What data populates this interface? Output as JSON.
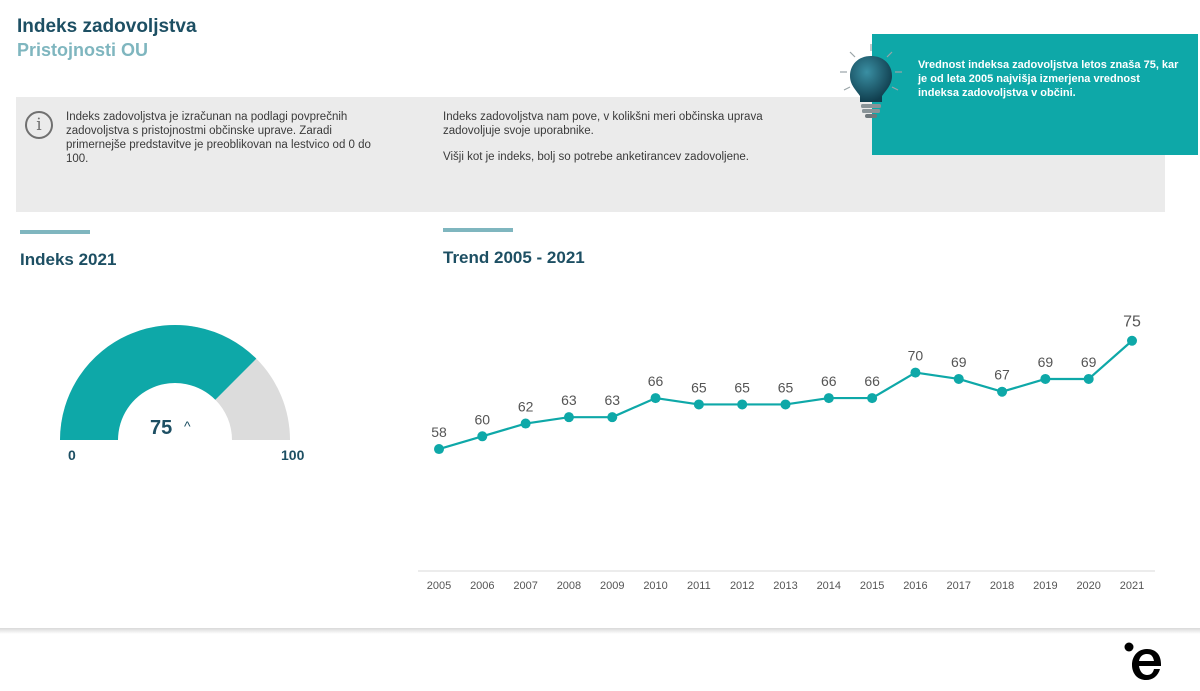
{
  "header": {
    "title": "Indeks zadovoljstva",
    "subtitle": "Pristojnosti OU"
  },
  "info": {
    "left_text": "Indeks zadovoljstva je izračunan na podlagi povprečnih zadovoljstva s pristojnostmi občinske uprave. Zaradi primernejše predstavitve je preoblikovan na lestvico od 0 do 100.",
    "right_p1": "Indeks zadovoljstva nam pove, v kolikšni meri občinska uprava zadovoljuje svoje uporabnike.",
    "right_p2": "Višji kot je indeks, bolj so potrebe anketirancev zadovoljene."
  },
  "callout": {
    "text": "Vrednost indeksa zadovoljstva letos znaša 75, kar je od leta 2005 najvišja izmerjena vrednost indeksa zadovoljstva v občini.",
    "icon": "lightbulb-icon"
  },
  "colors": {
    "accent": "#0ea8a8",
    "accent_light": "#7fb6bf",
    "title": "#1d4f63",
    "gauge_rest": "#dcdcdc"
  },
  "chart_data": [
    {
      "type": "gauge",
      "title": "Indeks 2021",
      "value": 75,
      "value_label": "75",
      "trend_icon": "chevron-up-icon",
      "min": 0,
      "max": 100,
      "min_label": "0",
      "max_label": "100"
    },
    {
      "type": "line",
      "title": "Trend 2005 - 2021",
      "categories": [
        "2005",
        "2006",
        "2007",
        "2008",
        "2009",
        "2010",
        "2011",
        "2012",
        "2013",
        "2014",
        "2015",
        "2016",
        "2017",
        "2018",
        "2019",
        "2020",
        "2021"
      ],
      "values": [
        58,
        60,
        62,
        63,
        63,
        66,
        65,
        65,
        65,
        66,
        66,
        70,
        69,
        67,
        69,
        69,
        75
      ],
      "data_labels": true,
      "grid": false,
      "ylim": [
        50,
        77
      ]
    }
  ]
}
